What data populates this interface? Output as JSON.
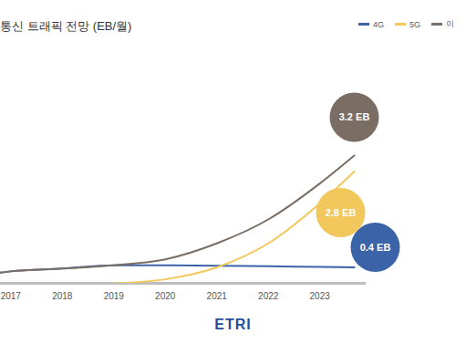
{
  "chart_data": {
    "type": "line",
    "title": "통신 트래픽 전망 (EB/월)",
    "logo": "ETRI",
    "xlim": [
      2016.8,
      2023.9
    ],
    "xticks": [
      2017,
      2018,
      2019,
      2020,
      2021,
      2022,
      2023
    ],
    "ylim": [
      0,
      5.6
    ],
    "tick_labels": "x",
    "data_labels": true,
    "series": [
      {
        "name": "4G",
        "color": "#3a63a8",
        "x": [
          2016.8,
          2017,
          2018,
          2019,
          2020,
          2021,
          2022,
          2023,
          2023.67
        ],
        "values": [
          0.27,
          0.3,
          0.37,
          0.45,
          0.45,
          0.44,
          0.43,
          0.41,
          0.4
        ],
        "end_label": "0.4 EB"
      },
      {
        "name": "5G",
        "color": "#f2c75c",
        "x": [
          2019,
          2020,
          2021,
          2022,
          2023,
          2023.67
        ],
        "values": [
          0,
          0.1,
          0.4,
          1.0,
          2.0,
          2.8
        ],
        "end_label": "2.8 EB"
      },
      {
        "name": "이",
        "color": "#7a6e64",
        "x": [
          2016.8,
          2017,
          2018,
          2019,
          2020,
          2021,
          2022,
          2023,
          2023.67
        ],
        "values": [
          0.27,
          0.3,
          0.37,
          0.45,
          0.6,
          1.0,
          1.6,
          2.5,
          3.2
        ],
        "end_label": "3.2 EB"
      }
    ]
  }
}
